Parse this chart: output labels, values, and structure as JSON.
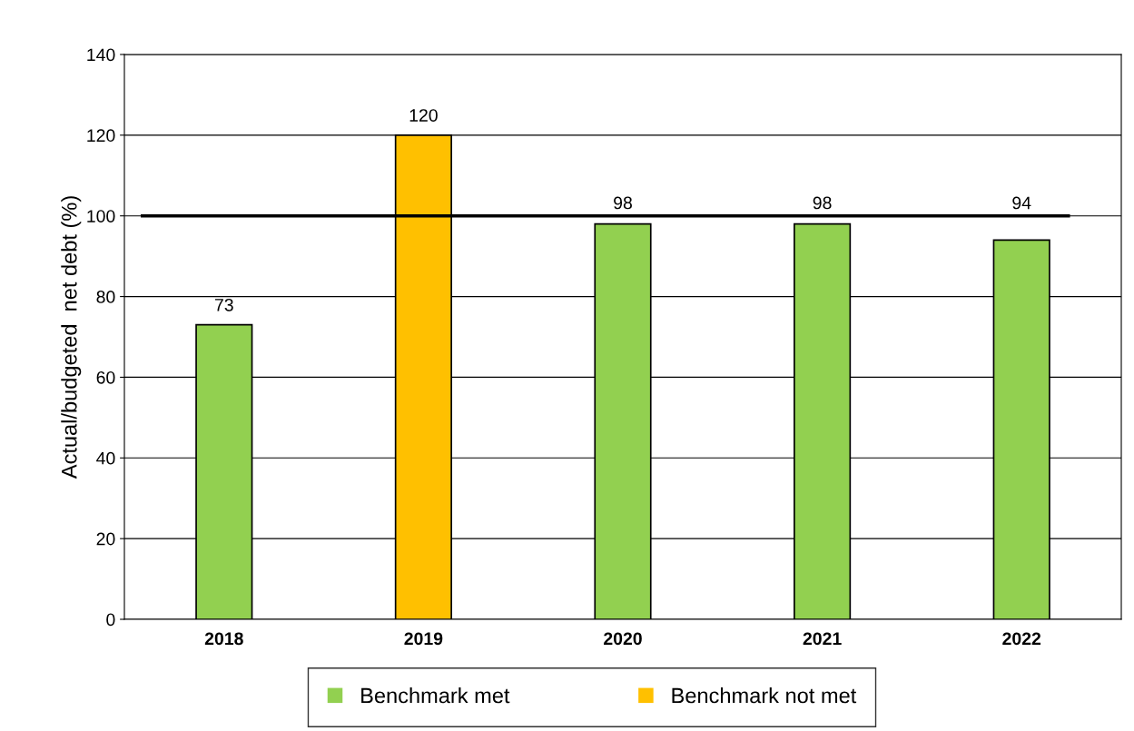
{
  "chart_data": {
    "type": "bar",
    "ylabel": "Actual/budgeted  net debt (%)",
    "categories": [
      "2018",
      "2019",
      "2020",
      "2021",
      "2022"
    ],
    "series": [
      {
        "name": "Benchmark met",
        "color": "#92d050",
        "values": [
          73,
          null,
          98,
          98,
          94
        ]
      },
      {
        "name": "Benchmark not met",
        "color": "#ffc000",
        "values": [
          null,
          120,
          null,
          null,
          null
        ]
      }
    ],
    "ylim": [
      0,
      140
    ],
    "yticks": [
      0,
      20,
      40,
      60,
      80,
      100,
      120,
      140
    ],
    "ref_lines": [
      {
        "axis": "y",
        "value": 100,
        "color": "#000000"
      }
    ],
    "data_labels": true,
    "grid": "y",
    "legend": "bottom"
  }
}
